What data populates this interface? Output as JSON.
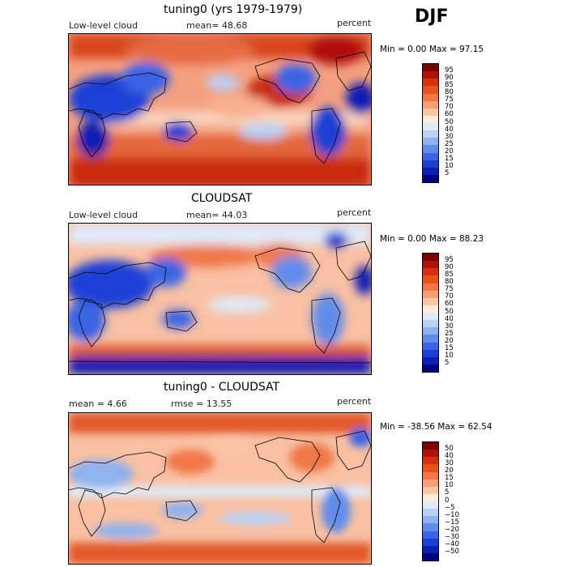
{
  "season": "DJF",
  "panels": [
    {
      "title": "tuning0 (yrs 1979-1979)",
      "left_label": "Low-level cloud",
      "mid_label": "mean=  48.68",
      "units": "percent",
      "minmax": "Min =    0.00 Max =   97.15",
      "type": "abs",
      "levels": [
        "95",
        "90",
        "85",
        "80",
        "75",
        "70",
        "60",
        "50",
        "40",
        "30",
        "25",
        "20",
        "15",
        "10",
        "5"
      ]
    },
    {
      "title": "CLOUDSAT",
      "left_label": "Low-level cloud",
      "mid_label": "mean=  44.03",
      "units": "percent",
      "minmax": "Min =    0.00 Max =   88.23",
      "type": "abs",
      "levels": [
        "95",
        "90",
        "85",
        "80",
        "75",
        "70",
        "60",
        "50",
        "40",
        "30",
        "25",
        "20",
        "15",
        "10",
        "5"
      ]
    },
    {
      "title": "tuning0 - CLOUDSAT",
      "left_label": "mean =    4.66",
      "mid_label": "rmse =   13.55",
      "units": "percent",
      "minmax": "Min = -38.56 Max =   62.54",
      "type": "diff",
      "levels": [
        "50",
        "40",
        "30",
        "20",
        "15",
        "10",
        "5",
        "0",
        "−5",
        "−10",
        "−15",
        "−20",
        "−30",
        "−40",
        "−50"
      ]
    }
  ],
  "colors": {
    "abs_scale": [
      "#7a0000",
      "#b0110b",
      "#d4310f",
      "#e8531a",
      "#f07848",
      "#f79e75",
      "#fbc6a6",
      "#fdebdc",
      "#dfeaf8",
      "#b9d1f3",
      "#8fb1ee",
      "#628cea",
      "#3a64e5",
      "#1d3fd6",
      "#0a1fb4",
      "#00007e"
    ],
    "diff_scale": [
      "#7a0000",
      "#b0110b",
      "#d4310f",
      "#e8531a",
      "#f07848",
      "#f79e75",
      "#fbc6a6",
      "#fdebdc",
      "#dfeaf8",
      "#b9d1f3",
      "#8fb1ee",
      "#628cea",
      "#3a64e5",
      "#1d3fd6",
      "#0a1fb4",
      "#00007e"
    ],
    "land_outline": "#000000"
  }
}
